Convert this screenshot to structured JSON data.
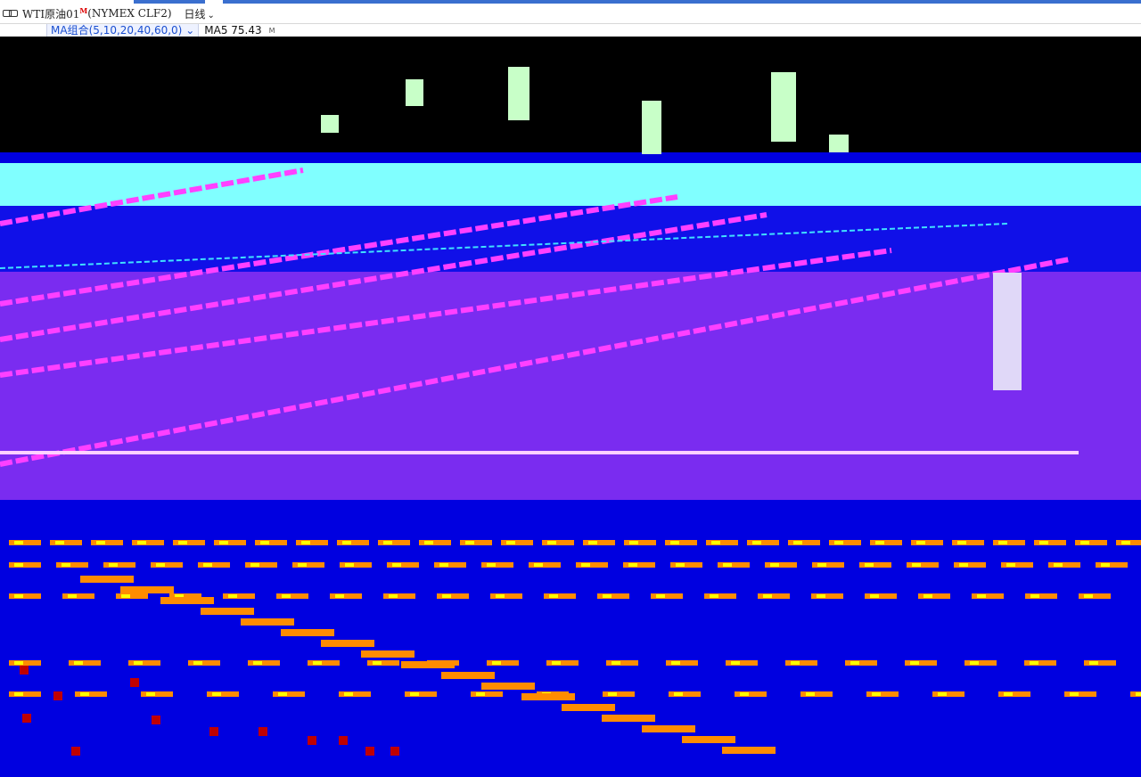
{
  "window": {
    "title": "WTI原油01",
    "title_badge": "M",
    "symbol": "(NYMEX CLF2)",
    "period": "日线",
    "chevron_icon": "chevron-down-icon",
    "link_icon": "link-icon"
  },
  "indicator": {
    "combo_label": "MA组合(5,10,20,40,60,0)",
    "ma5_label": "MA5 75.43",
    "more_label": "M"
  },
  "colors": {
    "background": "#0000e0",
    "price_band": "#000000",
    "cyan_band": "#80ffff",
    "purple_band": "#8a2be2",
    "magenta_line": "#ff40ff",
    "cyan_line": "#40e0ff",
    "candle_up": "#c8ffc8",
    "candle_down": "#ff3030",
    "volume_orange": "#ff8c00",
    "volume_yellow": "#ffff00",
    "volume_red": "#c00000"
  },
  "chart_data": {
    "type": "line",
    "series": [
      {
        "values": []
      }
    ]
  }
}
